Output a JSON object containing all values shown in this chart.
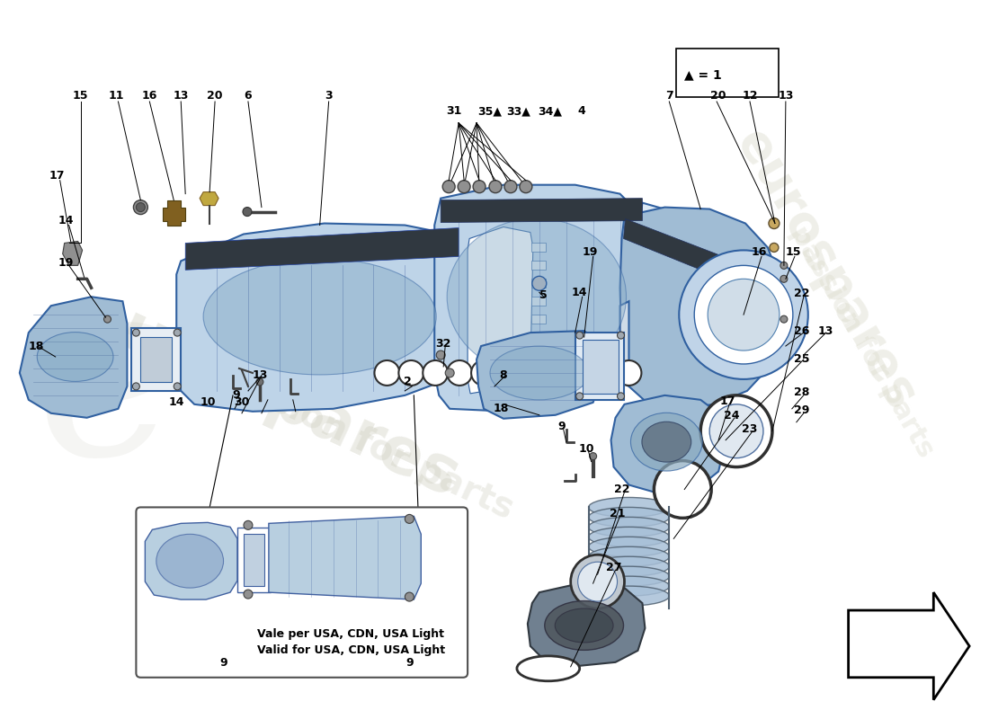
{
  "background_color": "#ffffff",
  "legend_symbol": "▲ = 1",
  "validity_text_it": "Vale per USA, CDN, USA Light",
  "validity_text_en": "Valid for USA, CDN, USA Light",
  "manifold_color": "#bed4e8",
  "manifold_dark": "#8aaec8",
  "manifold_edge": "#3060a0",
  "gasket_color": "#d0d0d0",
  "throttle_color": "#a0bcd4",
  "dark_part_color": "#607080",
  "label_font_size": 9,
  "watermark_color": "#d0d0c0"
}
